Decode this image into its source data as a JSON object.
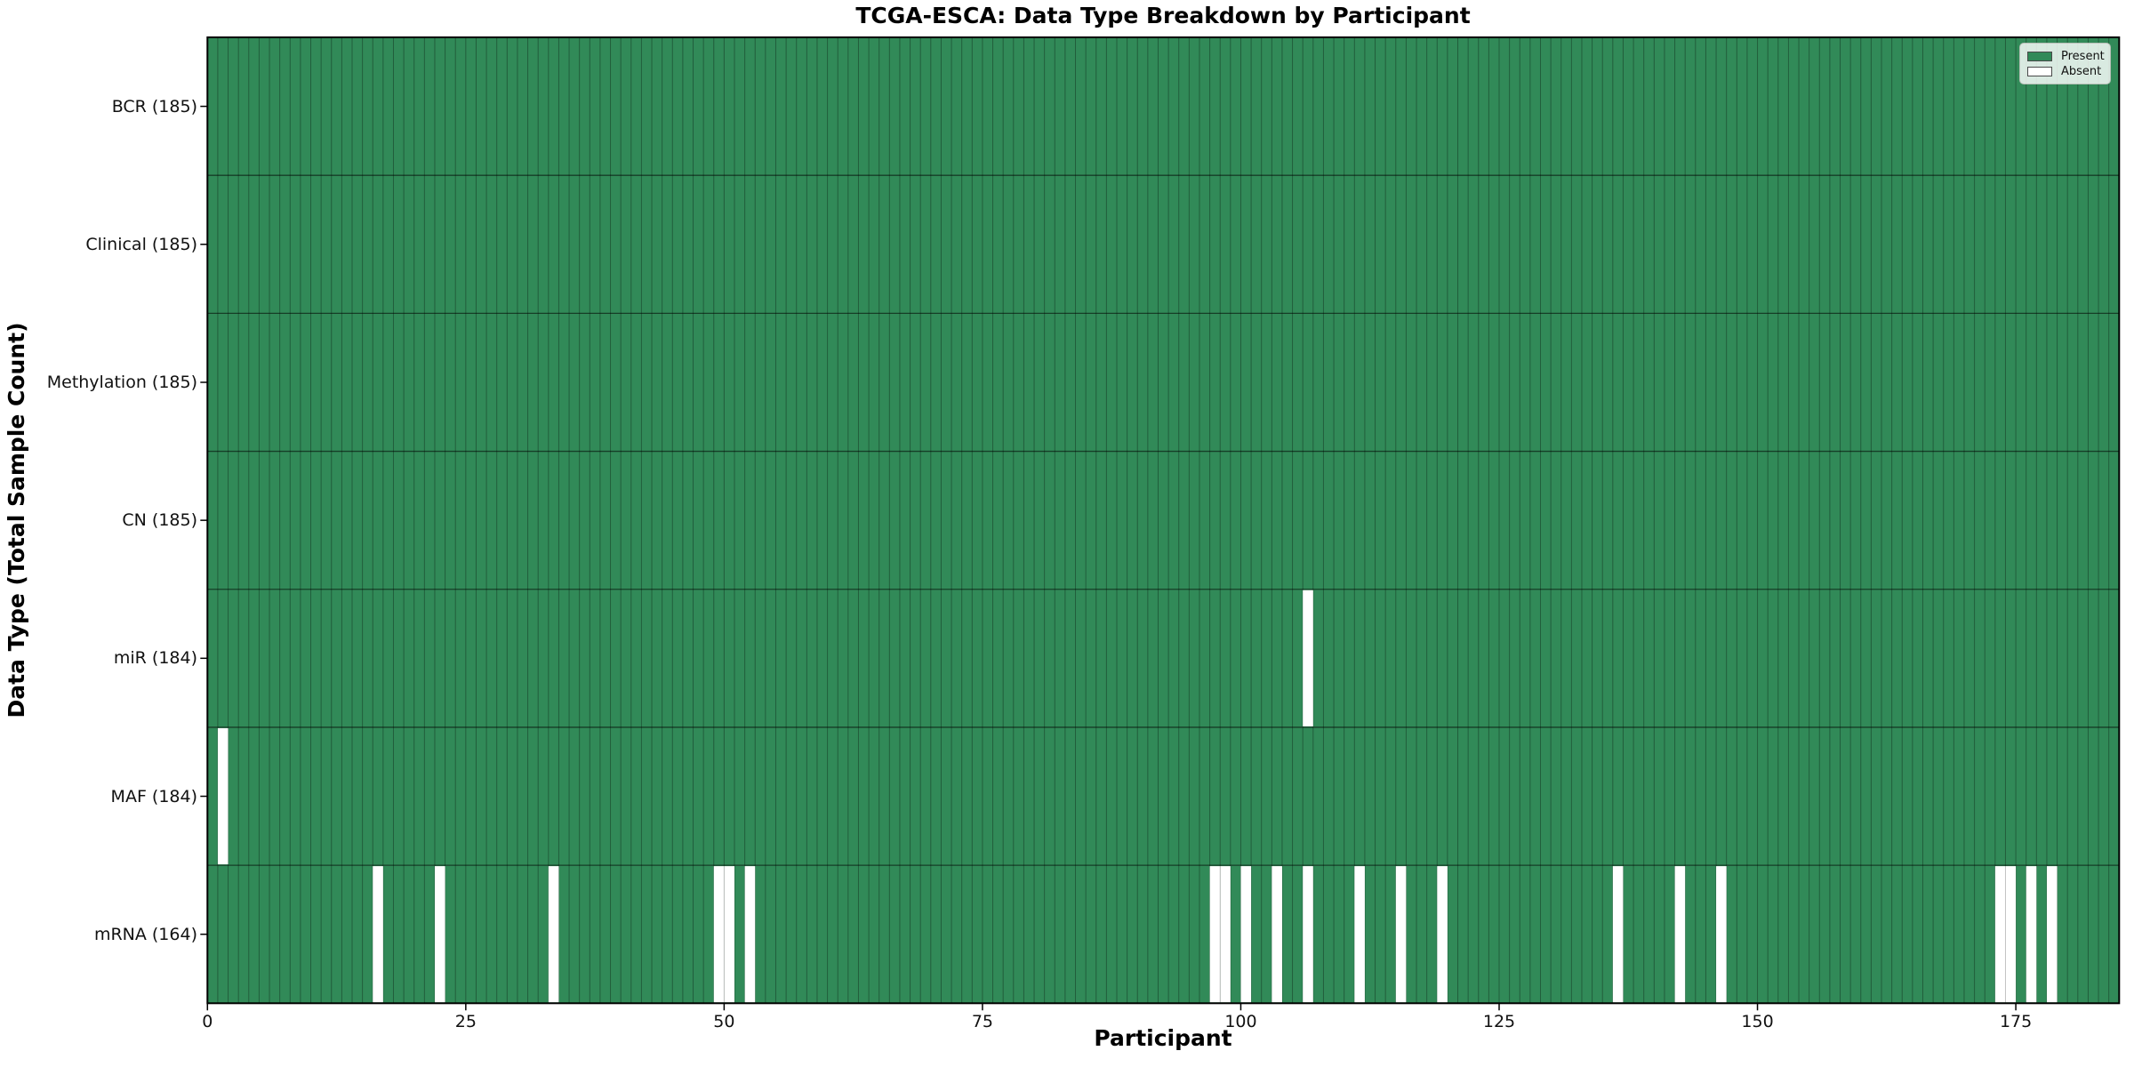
{
  "figure": {
    "title": "TCGA-ESCA: Data Type Breakdown by Participant",
    "xlabel": "Participant",
    "ylabel": "Data Type (Total Sample Count)"
  },
  "legend": {
    "items": [
      {
        "label": "Present",
        "color": "#318a58"
      },
      {
        "label": "Absent",
        "color": "#ffffff"
      }
    ]
  },
  "chart_data": {
    "type": "heatmap",
    "title": "TCGA-ESCA: Data Type Breakdown by Participant",
    "xlabel": "Participant",
    "ylabel": "Data Type (Total Sample Count)",
    "n_participants": 185,
    "xlim": [
      0,
      185
    ],
    "x_ticks": [
      0,
      25,
      50,
      75,
      100,
      125,
      150,
      175
    ],
    "legend": [
      "Present",
      "Absent"
    ],
    "legend_position": "upper right",
    "grid": "cell-borders",
    "colors": {
      "present": "#318a58",
      "absent": "#ffffff",
      "cell_border": "rgba(0,0,0,0.32)",
      "row_divider": "rgba(0,0,0,0.55)",
      "spine": "#000000"
    },
    "rows": [
      {
        "label": "BCR (185)",
        "count": 185,
        "absent_participants": []
      },
      {
        "label": "Clinical (185)",
        "count": 185,
        "absent_participants": []
      },
      {
        "label": "Methylation (185)",
        "count": 185,
        "absent_participants": []
      },
      {
        "label": "CN (185)",
        "count": 185,
        "absent_participants": []
      },
      {
        "label": "miR (184)",
        "count": 184,
        "absent_participants": [
          106
        ]
      },
      {
        "label": "MAF (184)",
        "count": 184,
        "absent_participants": [
          1
        ]
      },
      {
        "label": "mRNA (164)",
        "count": 164,
        "absent_participants": [
          16,
          22,
          33,
          49,
          50,
          52,
          97,
          98,
          100,
          103,
          106,
          111,
          115,
          119,
          136,
          142,
          146,
          173,
          174,
          176,
          178
        ]
      }
    ]
  }
}
